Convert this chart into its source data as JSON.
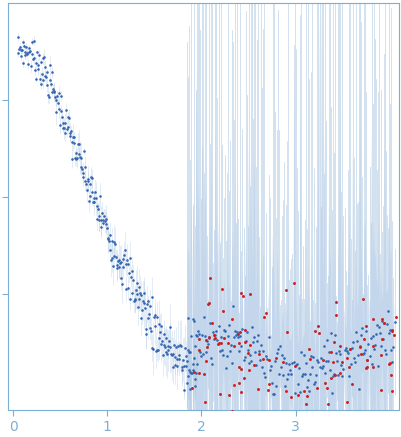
{
  "xlim": [
    -0.05,
    4.1
  ],
  "ylim": [
    -0.008,
    0.16
  ],
  "xlabel_ticks": [
    0,
    1,
    2,
    3
  ],
  "background_color": "#ffffff",
  "blue_dot_color": "#3465b0",
  "red_dot_color": "#cc2020",
  "error_band_color": "#c5d8f0",
  "error_line_color": "#a8c4e0",
  "axis_color": "#7bafd4",
  "tick_color": "#7bafd4",
  "seed_main": 7,
  "seed_red": 13,
  "n_main": 260,
  "n_high": 200,
  "n_red": 130
}
